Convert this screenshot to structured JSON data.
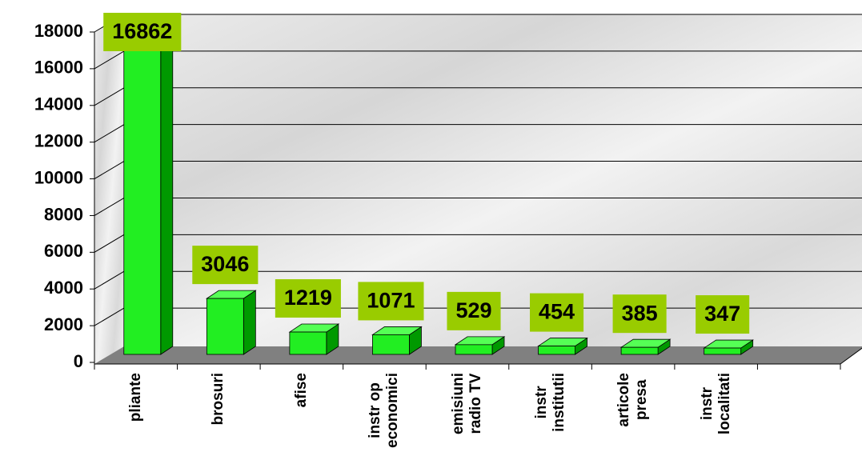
{
  "chart_data": {
    "type": "bar3d",
    "categories": [
      "pliante",
      "brosuri",
      "afise",
      "instr op\neconomici",
      "emisiuni\nradio TV",
      "instr\ninstitutii",
      "articole\npresa",
      "instr\nlocalitati"
    ],
    "values": [
      16862,
      3046,
      1219,
      1071,
      529,
      454,
      385,
      347
    ],
    "color": "#22ee22",
    "label_box_color": "#99cc00",
    "ylim": [
      0,
      18000
    ],
    "yticks": [
      0,
      2000,
      4000,
      6000,
      8000,
      10000,
      12000,
      14000,
      16000,
      18000
    ],
    "grid": true
  }
}
